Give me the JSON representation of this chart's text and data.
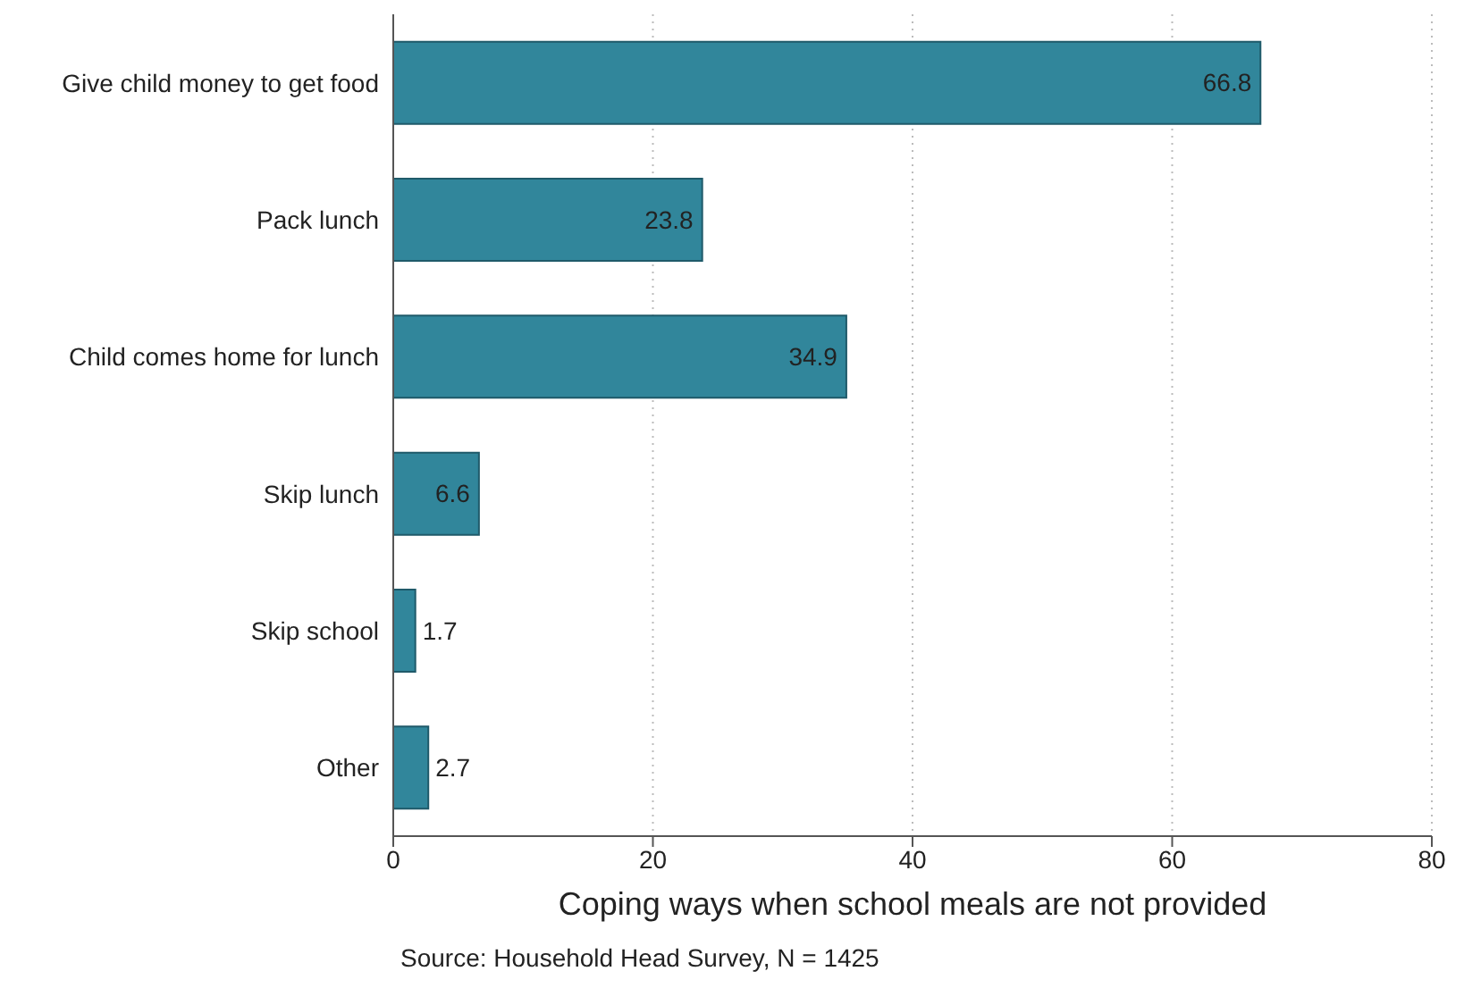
{
  "chart_data": {
    "type": "bar",
    "orientation": "horizontal",
    "categories": [
      "Give child money to get food",
      "Pack lunch",
      "Child comes home for lunch",
      "Skip lunch",
      "Skip school",
      "Other"
    ],
    "values": [
      66.8,
      23.8,
      34.9,
      6.6,
      1.7,
      2.7
    ],
    "color": "#31869b",
    "xlim": [
      0,
      80
    ],
    "xticks": [
      0,
      20,
      40,
      60,
      80
    ],
    "xlabel": "Coping ways when school meals are not provided",
    "annotations": [
      "Source: Household Head Survey, N = 1425"
    ],
    "data_labels": true,
    "grid": "x",
    "legend": false
  }
}
